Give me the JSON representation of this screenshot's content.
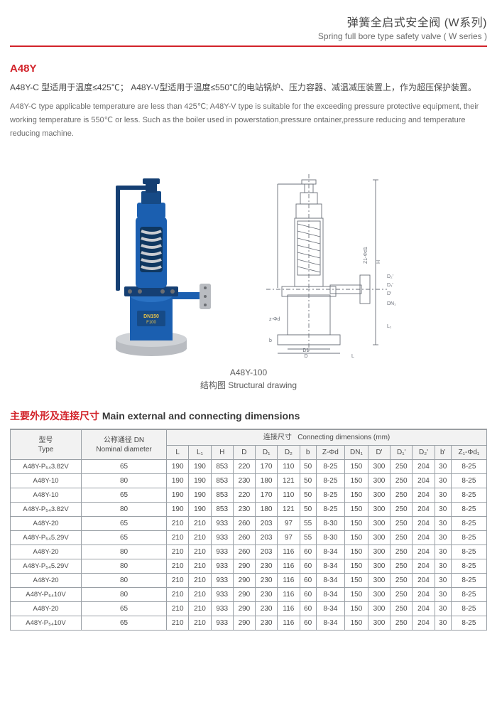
{
  "header": {
    "title_cn": "弹簧全启式安全阀 (W系列)",
    "title_en": "Spring full bore type safety valve ( W series )"
  },
  "model": "A48Y",
  "desc_cn": "A48Y-C 型适用于温度≤425℃； A48Y-V型适用于温度≤550℃的电站锅炉、压力容器、减温减压装置上，作为超压保护装置。",
  "desc_en": "A48Y-C type applicable temperature are less than 425℃; A48Y-V type is suitable for the exceeding pressure protective equipment, their working temperature is 550℃ or less. Such as the boiler used in powerstation,pressure ontainer,pressure reducing and temperature reducing machine.",
  "caption": {
    "line1": "A48Y-100",
    "line2": "结构图 Structural drawing"
  },
  "photo": {
    "body_color": "#1b5fb0",
    "flange_color": "#b9bcc1",
    "spring_color": "#c9ccd1",
    "bolt_color": "#6b6e73",
    "label_text": "DN150"
  },
  "diagram": {
    "stroke": "#6a6f78",
    "dim_label_color": "#6a6f78"
  },
  "table": {
    "section_cn": "主要外形及连接尺寸",
    "section_en": "Main external and connecting dimensions",
    "head_type_cn": "型号",
    "head_type_en": "Type",
    "head_dn_cn": "公称通径 DN",
    "head_dn_en": "Nominal diameter",
    "head_conn_cn": "连接尺寸",
    "head_conn_en": "Connecting dimensions (mm)",
    "cols": [
      "L",
      "L₁",
      "H",
      "D",
      "D₁",
      "D₂",
      "b",
      "Z-Φd",
      "DN₁",
      "D'",
      "D₁'",
      "D₂'",
      "b'",
      "Z₁-Φd₁"
    ],
    "rows": [
      {
        "type": "A48Y-P₅₄3.82V",
        "dn": "65",
        "v": [
          "190",
          "190",
          "853",
          "220",
          "170",
          "110",
          "50",
          "8-25",
          "150",
          "300",
          "250",
          "204",
          "30",
          "8-25"
        ]
      },
      {
        "type": "A48Y-10",
        "dn": "80",
        "v": [
          "190",
          "190",
          "853",
          "230",
          "180",
          "121",
          "50",
          "8-25",
          "150",
          "300",
          "250",
          "204",
          "30",
          "8-25"
        ]
      },
      {
        "type": "A48Y-10",
        "dn": "65",
        "v": [
          "190",
          "190",
          "853",
          "220",
          "170",
          "110",
          "50",
          "8-25",
          "150",
          "300",
          "250",
          "204",
          "30",
          "8-25"
        ]
      },
      {
        "type": "A48Y-P₅₄3.82V",
        "dn": "80",
        "v": [
          "190",
          "190",
          "853",
          "230",
          "180",
          "121",
          "50",
          "8-25",
          "150",
          "300",
          "250",
          "204",
          "30",
          "8-25"
        ]
      },
      {
        "type": "A48Y-20",
        "dn": "65",
        "v": [
          "210",
          "210",
          "933",
          "260",
          "203",
          "97",
          "55",
          "8-30",
          "150",
          "300",
          "250",
          "204",
          "30",
          "8-25"
        ]
      },
      {
        "type": "A48Y-P₅₄5.29V",
        "dn": "65",
        "v": [
          "210",
          "210",
          "933",
          "260",
          "203",
          "97",
          "55",
          "8-30",
          "150",
          "300",
          "250",
          "204",
          "30",
          "8-25"
        ]
      },
      {
        "type": "A48Y-20",
        "dn": "80",
        "v": [
          "210",
          "210",
          "933",
          "260",
          "203",
          "116",
          "60",
          "8-34",
          "150",
          "300",
          "250",
          "204",
          "30",
          "8-25"
        ]
      },
      {
        "type": "A48Y-P₅₄5.29V",
        "dn": "80",
        "v": [
          "210",
          "210",
          "933",
          "290",
          "230",
          "116",
          "60",
          "8-34",
          "150",
          "300",
          "250",
          "204",
          "30",
          "8-25"
        ]
      },
      {
        "type": "A48Y-20",
        "dn": "80",
        "v": [
          "210",
          "210",
          "933",
          "290",
          "230",
          "116",
          "60",
          "8-34",
          "150",
          "300",
          "250",
          "204",
          "30",
          "8-25"
        ]
      },
      {
        "type": "A48Y-P₅₄10V",
        "dn": "80",
        "v": [
          "210",
          "210",
          "933",
          "290",
          "230",
          "116",
          "60",
          "8-34",
          "150",
          "300",
          "250",
          "204",
          "30",
          "8-25"
        ]
      },
      {
        "type": "A48Y-20",
        "dn": "65",
        "v": [
          "210",
          "210",
          "933",
          "290",
          "230",
          "116",
          "60",
          "8-34",
          "150",
          "300",
          "250",
          "204",
          "30",
          "8-25"
        ]
      },
      {
        "type": "A48Y-P₅₄10V",
        "dn": "65",
        "v": [
          "210",
          "210",
          "933",
          "290",
          "230",
          "116",
          "60",
          "8-34",
          "150",
          "300",
          "250",
          "204",
          "30",
          "8-25"
        ]
      }
    ]
  }
}
